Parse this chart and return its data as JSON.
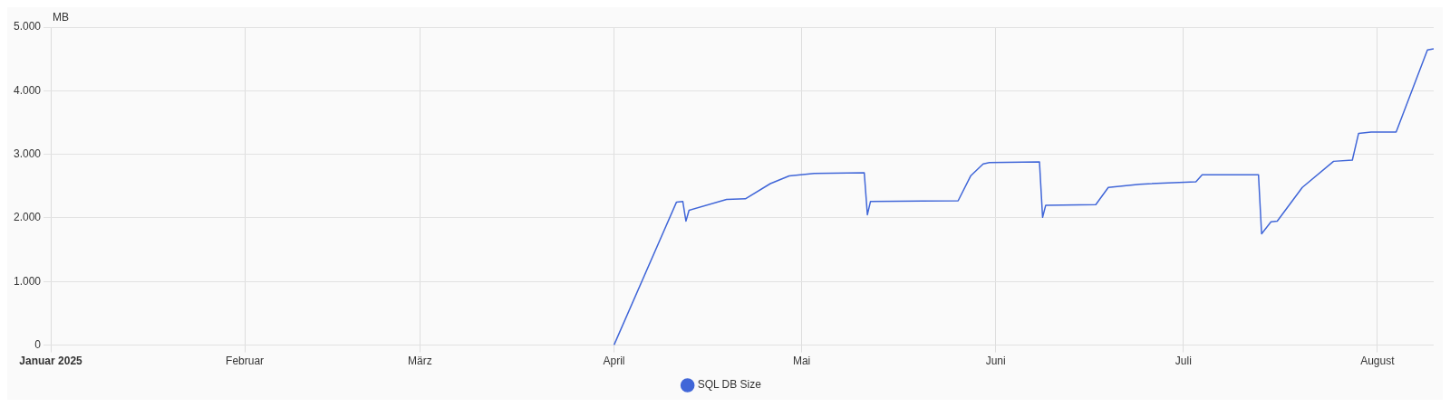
{
  "chart_data": {
    "type": "line",
    "ylabel": "MB",
    "x": [
      "2025-04-01",
      "2025-04-11",
      "2025-04-12",
      "2025-04-12T12:00",
      "2025-04-13",
      "2025-04-19",
      "2025-04-22",
      "2025-04-26",
      "2025-04-29",
      "2025-05-03",
      "2025-05-11",
      "2025-05-11T12:00",
      "2025-05-12",
      "2025-05-26",
      "2025-05-28",
      "2025-05-30",
      "2025-05-31",
      "2025-06-08",
      "2025-06-08T12:00",
      "2025-06-09",
      "2025-06-17",
      "2025-06-19",
      "2025-06-24",
      "2025-07-03",
      "2025-07-04",
      "2025-07-13",
      "2025-07-13T12:00",
      "2025-07-15",
      "2025-07-16",
      "2025-07-20",
      "2025-07-25",
      "2025-07-28",
      "2025-07-29",
      "2025-07-31",
      "2025-08-04",
      "2025-08-09",
      "2025-08-10"
    ],
    "series": [
      {
        "name": "SQL DB Size",
        "color": "#4066d8",
        "values": [
          0,
          2250,
          2260,
          1950,
          2120,
          2290,
          2300,
          2540,
          2660,
          2700,
          2710,
          2050,
          2260,
          2270,
          2660,
          2850,
          2870,
          2880,
          2010,
          2200,
          2210,
          2480,
          2530,
          2570,
          2680,
          2680,
          1750,
          1940,
          1950,
          2480,
          2890,
          2910,
          3330,
          3350,
          3350,
          4640,
          4660
        ]
      }
    ],
    "xlim": [
      "2025-01-01",
      "2025-08-10"
    ],
    "xticks": [
      {
        "value": "2025-01-01",
        "label": "Januar 2025"
      },
      {
        "value": "2025-02-01",
        "label": "Februar"
      },
      {
        "value": "2025-03-01",
        "label": "März"
      },
      {
        "value": "2025-04-01",
        "label": "April"
      },
      {
        "value": "2025-05-01",
        "label": "Mai"
      },
      {
        "value": "2025-06-01",
        "label": "Juni"
      },
      {
        "value": "2025-07-01",
        "label": "Juli"
      },
      {
        "value": "2025-08-01",
        "label": "August"
      }
    ],
    "ylim": [
      0,
      5000
    ],
    "yticks": [
      0,
      {
        "value": 1000,
        "label": "1.000"
      },
      {
        "value": 2000,
        "label": "2.000"
      },
      {
        "value": 3000,
        "label": "3.000"
      },
      {
        "value": 4000,
        "label": "4.000"
      },
      {
        "value": 5000,
        "label": "5.000"
      }
    ],
    "grid": true,
    "legend": "bottom",
    "marker": "none",
    "line_style": "solid"
  }
}
